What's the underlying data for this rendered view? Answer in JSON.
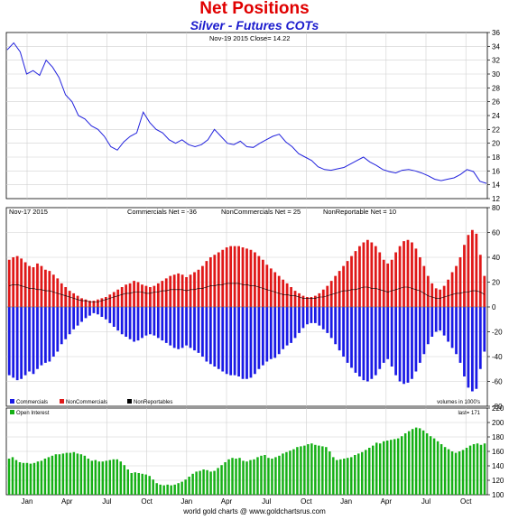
{
  "page": {
    "title": "Net Positions",
    "subtitle": "Silver - Futures COTs",
    "footer": "world gold charts @ www.goldchartsrus.com"
  },
  "colors": {
    "price_line": "#2222dd",
    "commercials": "#1a1ae6",
    "noncommercials": "#e01818",
    "nonreportables": "#000000",
    "open_interest": "#15b015",
    "grid": "#d0d0d0",
    "title": "#e00000",
    "subtitle": "#1c1ccd"
  },
  "x_axis": {
    "tick_labels": [
      "Jan",
      "Apr",
      "Jul",
      "Oct",
      "Jan",
      "Apr",
      "Jul",
      "Oct",
      "Jan",
      "Apr",
      "Jul",
      "Oct"
    ]
  },
  "chart_data": [
    {
      "type": "line",
      "panel": "price",
      "header": "Nov-19  2015   Close= 14.22",
      "ylim": [
        12,
        36
      ],
      "yticks": [
        12,
        14,
        16,
        18,
        20,
        22,
        24,
        26,
        28,
        30,
        32,
        34,
        36
      ],
      "grid": true,
      "series": [
        {
          "values": [
            33.5,
            34.5,
            33.2,
            30.0,
            30.5,
            29.8,
            32.0,
            31.0,
            29.5,
            27.0,
            26.0,
            24.0,
            23.5,
            22.5,
            22.0,
            21.0,
            19.5,
            19.0,
            20.2,
            21.0,
            21.5,
            24.5,
            23.0,
            22.0,
            21.5,
            20.5,
            20.0,
            20.5,
            19.8,
            19.5,
            19.8,
            20.5,
            22.0,
            21.0,
            20.0,
            19.8,
            20.3,
            19.5,
            19.4,
            20.0,
            20.5,
            21.0,
            21.3,
            20.2,
            19.5,
            18.5,
            18.0,
            17.5,
            16.6,
            16.2,
            16.1,
            16.3,
            16.5,
            17.0,
            17.5,
            18.0,
            17.3,
            16.8,
            16.2,
            15.9,
            15.7,
            16.1,
            16.2,
            16.0,
            15.7,
            15.3,
            14.8,
            14.6,
            14.8,
            15.0,
            15.5,
            16.2,
            15.9,
            14.5,
            14.2
          ]
        }
      ]
    },
    {
      "type": "bar",
      "panel": "net positions",
      "header": "Nov-17  2015",
      "ylim": [
        -80,
        80
      ],
      "yticks": [
        -80,
        -60,
        -40,
        -20,
        0,
        20,
        40,
        60,
        80
      ],
      "grid": true,
      "annotations": [
        "Commercials Net = -36",
        "NonCommercials Net = 25",
        "NonReportable Net = 10"
      ],
      "legend": {
        "position": "bottom-left",
        "items": [
          "Commercials",
          "NonCommercials",
          "NonReportables"
        ]
      },
      "units": "volumes in 1000's",
      "series": [
        {
          "name": "Commercials",
          "values": [
            -55,
            -57,
            -59,
            -58,
            -55,
            -52,
            -54,
            -50,
            -47,
            -45,
            -44,
            -40,
            -36,
            -30,
            -26,
            -22,
            -18,
            -15,
            -12,
            -9,
            -7,
            -5,
            -6,
            -8,
            -10,
            -13,
            -16,
            -19,
            -22,
            -24,
            -26,
            -28,
            -27,
            -25,
            -23,
            -22,
            -23,
            -25,
            -27,
            -29,
            -31,
            -33,
            -34,
            -33,
            -31,
            -33,
            -35,
            -37,
            -40,
            -44,
            -46,
            -48,
            -50,
            -52,
            -54,
            -55,
            -55,
            -56,
            -58,
            -58,
            -57,
            -54,
            -50,
            -47,
            -44,
            -42,
            -41,
            -38,
            -34,
            -31,
            -29,
            -25,
            -21,
            -17,
            -14,
            -13,
            -13,
            -15,
            -18,
            -21,
            -25,
            -30,
            -35,
            -40,
            -45,
            -49,
            -53,
            -56,
            -59,
            -60,
            -58,
            -55,
            -50,
            -45,
            -42,
            -48,
            -55,
            -60,
            -62,
            -61,
            -58,
            -52,
            -45,
            -38,
            -30,
            -24,
            -20,
            -19,
            -23,
            -28,
            -33,
            -38,
            -45,
            -56,
            -65,
            -68,
            -66,
            -50,
            -36
          ]
        },
        {
          "name": "NonCommercials",
          "values": [
            38,
            40,
            41,
            39,
            36,
            33,
            32,
            35,
            33,
            30,
            29,
            26,
            23,
            19,
            16,
            13,
            11,
            9,
            7,
            6,
            5,
            5,
            6,
            7,
            8,
            10,
            12,
            14,
            16,
            18,
            19,
            21,
            20,
            18,
            17,
            16,
            17,
            19,
            21,
            23,
            25,
            26,
            27,
            26,
            24,
            26,
            28,
            30,
            33,
            37,
            40,
            42,
            44,
            46,
            48,
            49,
            49,
            49,
            48,
            47,
            46,
            44,
            41,
            38,
            34,
            31,
            28,
            25,
            22,
            19,
            16,
            13,
            11,
            9,
            8,
            8,
            9,
            11,
            14,
            17,
            21,
            25,
            29,
            33,
            37,
            41,
            45,
            49,
            52,
            54,
            52,
            49,
            44,
            38,
            35,
            38,
            44,
            49,
            53,
            54,
            52,
            47,
            40,
            33,
            25,
            19,
            15,
            14,
            17,
            22,
            28,
            33,
            40,
            50,
            58,
            62,
            59,
            42,
            25
          ]
        },
        {
          "name": "NonReportables",
          "values": [
            17,
            18,
            18,
            17,
            16,
            15,
            15,
            14,
            14,
            13,
            13,
            12,
            11,
            10,
            9,
            8,
            7,
            6,
            5,
            5,
            4,
            4,
            4,
            5,
            6,
            7,
            8,
            9,
            10,
            11,
            11,
            12,
            12,
            12,
            11,
            11,
            12,
            12,
            13,
            13,
            14,
            14,
            14,
            14,
            13,
            14,
            14,
            15,
            15,
            16,
            17,
            17,
            18,
            18,
            19,
            19,
            19,
            19,
            18,
            18,
            17,
            17,
            16,
            15,
            14,
            13,
            12,
            11,
            10,
            10,
            9,
            9,
            8,
            7,
            7,
            7,
            7,
            8,
            8,
            9,
            10,
            11,
            12,
            13,
            13,
            14,
            14,
            15,
            16,
            16,
            15,
            15,
            14,
            13,
            12,
            13,
            14,
            15,
            16,
            16,
            15,
            14,
            13,
            11,
            9,
            8,
            7,
            7,
            8,
            9,
            10,
            11,
            11,
            12,
            12,
            13,
            13,
            12,
            10
          ]
        }
      ]
    },
    {
      "type": "bar",
      "panel": "open interest",
      "ylim": [
        100,
        220
      ],
      "yticks": [
        100,
        120,
        140,
        160,
        180,
        200,
        220
      ],
      "grid": true,
      "legend": {
        "position": "top-left",
        "items": [
          "Open Interest"
        ]
      },
      "annotation": "last= 171",
      "series": [
        {
          "name": "Open Interest",
          "values": [
            150,
            152,
            148,
            145,
            144,
            144,
            143,
            144,
            146,
            147,
            150,
            152,
            154,
            156,
            156,
            157,
            158,
            158,
            159,
            157,
            156,
            154,
            150,
            147,
            148,
            146,
            146,
            147,
            148,
            149,
            149,
            146,
            141,
            135,
            130,
            131,
            130,
            129,
            128,
            126,
            121,
            116,
            114,
            113,
            114,
            113,
            114,
            116,
            118,
            121,
            125,
            129,
            132,
            133,
            135,
            134,
            132,
            133,
            137,
            141,
            145,
            149,
            151,
            150,
            151,
            147,
            146,
            148,
            149,
            152,
            154,
            155,
            151,
            150,
            152,
            154,
            157,
            159,
            161,
            163,
            166,
            167,
            168,
            170,
            171,
            169,
            168,
            167,
            166,
            160,
            152,
            148,
            149,
            150,
            151,
            152,
            155,
            157,
            159,
            162,
            165,
            168,
            172,
            171,
            174,
            175,
            176,
            177,
            178,
            181,
            185,
            188,
            191,
            193,
            192,
            189,
            185,
            181,
            178,
            174,
            170,
            166,
            163,
            160,
            158,
            160,
            162,
            165,
            168,
            170,
            171,
            169,
            171
          ]
        }
      ]
    }
  ]
}
